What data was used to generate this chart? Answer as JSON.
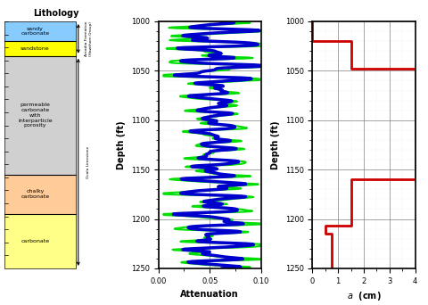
{
  "depth_min": 1000,
  "depth_max": 1250,
  "depth_ticks": [
    1000,
    1050,
    1100,
    1150,
    1200,
    1250
  ],
  "atten_xlim": [
    0,
    0.1
  ],
  "atten_xticks": [
    0,
    0.05,
    0.1
  ],
  "atten_xlabel": "Attenuation",
  "obs_color": "#00dd00",
  "calc_color": "#0000cc",
  "obs_lw": 1.5,
  "calc_lw": 2.5,
  "vug_xlim": [
    0,
    4
  ],
  "vug_xticks": [
    0,
    1,
    2,
    3,
    4
  ],
  "vug_xlabel": "$a$  (cm)",
  "vug_color": "#cc0000",
  "vug_lw": 2.0,
  "vug_depth": [
    1000,
    1020,
    1020,
    1048,
    1048,
    1160,
    1160,
    1207,
    1207,
    1215,
    1215,
    1250
  ],
  "vug_val": [
    0,
    0,
    1.5,
    1.5,
    4.0,
    4.0,
    1.5,
    1.5,
    0.5,
    0.5,
    0.75,
    0.75
  ],
  "lith_layers": [
    {
      "ymin": 0.0,
      "ymax": 0.08,
      "color": "#88ccff",
      "label": "sandy\ncarbonate"
    },
    {
      "ymin": 0.08,
      "ymax": 0.14,
      "color": "#ffff00",
      "label": "sandstone"
    },
    {
      "ymin": 0.14,
      "ymax": 0.62,
      "color": "#d0d0d0",
      "label": "permeable\ncarbonate\nwith\ninterparticle\nporosity"
    },
    {
      "ymin": 0.62,
      "ymax": 0.78,
      "color": "#ffcc99",
      "label": "chalky\ncarbonate"
    },
    {
      "ymin": 0.78,
      "ymax": 1.0,
      "color": "#ffff88",
      "label": "carbonate"
    }
  ],
  "lith_boundaries": [
    0.08,
    0.14,
    0.62,
    0.78
  ],
  "lith_label": "Lithology",
  "formation_label": "Arcadia Formation\n(Hawthorn Group)",
  "ocala_label": "Ocala Limestone",
  "depth_ylabel": "Depth (ft)",
  "figsize": [
    4.8,
    3.42
  ],
  "dpi": 100
}
